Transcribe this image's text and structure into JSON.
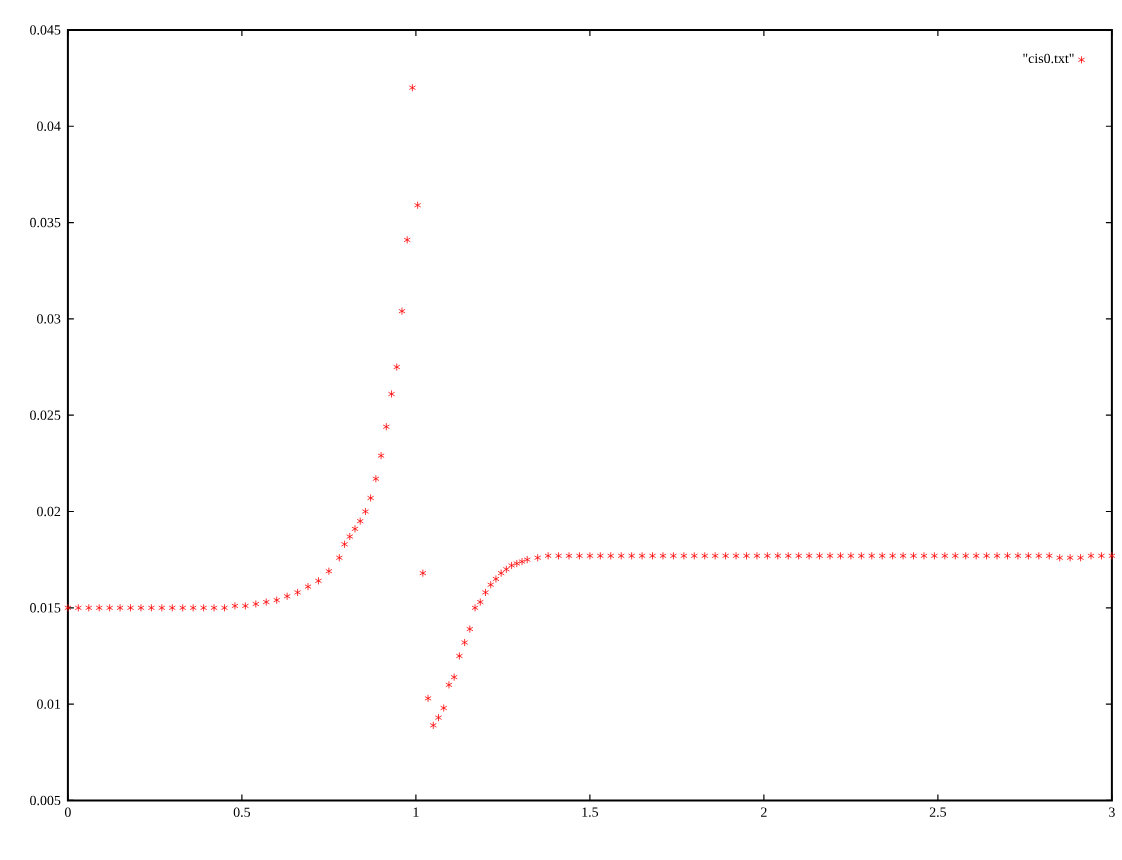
{
  "chart_data": {
    "type": "scatter",
    "xlim": [
      0,
      3
    ],
    "ylim": [
      0.005,
      0.045
    ],
    "xticks": [
      0,
      0.5,
      1,
      1.5,
      2,
      2.5,
      3
    ],
    "yticks": [
      0.005,
      0.01,
      0.015,
      0.02,
      0.025,
      0.03,
      0.035,
      0.04,
      0.045
    ],
    "marker": "cross",
    "legend": "top right",
    "grid": false,
    "series": [
      {
        "name": "\"cis0.txt\"",
        "color": "#ff0000",
        "x": [
          0,
          0.03,
          0.06,
          0.09,
          0.12,
          0.15,
          0.18,
          0.21,
          0.24,
          0.27,
          0.3,
          0.33,
          0.36,
          0.39,
          0.42,
          0.45,
          0.48,
          0.51,
          0.54,
          0.57,
          0.6,
          0.63,
          0.66,
          0.69,
          0.72,
          0.75,
          0.78,
          0.795,
          0.81,
          0.825,
          0.84,
          0.855,
          0.87,
          0.885,
          0.9,
          0.915,
          0.93,
          0.945,
          0.96,
          0.975,
          0.99,
          1.005,
          1.02,
          1.035,
          1.05,
          1.065,
          1.08,
          1.095,
          1.11,
          1.125,
          1.14,
          1.155,
          1.17,
          1.185,
          1.2,
          1.215,
          1.23,
          1.245,
          1.26,
          1.275,
          1.29,
          1.305,
          1.32,
          1.35,
          1.38,
          1.41,
          1.44,
          1.47,
          1.5,
          1.53,
          1.56,
          1.59,
          1.62,
          1.65,
          1.68,
          1.71,
          1.74,
          1.77,
          1.8,
          1.83,
          1.86,
          1.89,
          1.92,
          1.95,
          1.98,
          2.01,
          2.04,
          2.07,
          2.1,
          2.13,
          2.16,
          2.19,
          2.22,
          2.25,
          2.28,
          2.31,
          2.34,
          2.37,
          2.4,
          2.43,
          2.46,
          2.49,
          2.52,
          2.55,
          2.58,
          2.61,
          2.64,
          2.67,
          2.7,
          2.73,
          2.76,
          2.79,
          2.82,
          2.85,
          2.88,
          2.91,
          2.94,
          2.97,
          3
        ],
        "values": [
          0.015,
          0.015,
          0.015,
          0.015,
          0.015,
          0.015,
          0.015,
          0.015,
          0.015,
          0.015,
          0.015,
          0.015,
          0.015,
          0.015,
          0.015,
          0.015,
          0.0151,
          0.0151,
          0.0152,
          0.0153,
          0.0154,
          0.0156,
          0.0158,
          0.0161,
          0.0164,
          0.0169,
          0.0176,
          0.0183,
          0.0187,
          0.0191,
          0.0195,
          0.02,
          0.0207,
          0.0217,
          0.0229,
          0.0244,
          0.0261,
          0.0275,
          0.0304,
          0.0341,
          0.042,
          0.0359,
          0.0168,
          0.0103,
          0.0089,
          0.0093,
          0.0098,
          0.011,
          0.0114,
          0.0125,
          0.0132,
          0.0139,
          0.015,
          0.0153,
          0.0158,
          0.0162,
          0.0165,
          0.0168,
          0.017,
          0.0172,
          0.0173,
          0.0174,
          0.0175,
          0.0176,
          0.0177,
          0.0177,
          0.0177,
          0.0177,
          0.0177,
          0.0177,
          0.0177,
          0.0177,
          0.0177,
          0.0177,
          0.0177,
          0.0177,
          0.0177,
          0.0177,
          0.0177,
          0.0177,
          0.0177,
          0.0177,
          0.0177,
          0.0177,
          0.0177,
          0.0177,
          0.0177,
          0.0177,
          0.0177,
          0.0177,
          0.0177,
          0.0177,
          0.0177,
          0.0177,
          0.0177,
          0.0177,
          0.0177,
          0.0177,
          0.0177,
          0.0177,
          0.0177,
          0.0177,
          0.0177,
          0.0177,
          0.0177,
          0.0177,
          0.0177,
          0.0177,
          0.0177,
          0.0177,
          0.0177,
          0.0177,
          0.0177,
          0.0176,
          0.0176,
          0.0176,
          0.0177,
          0.0177,
          0.0177
        ]
      }
    ]
  }
}
